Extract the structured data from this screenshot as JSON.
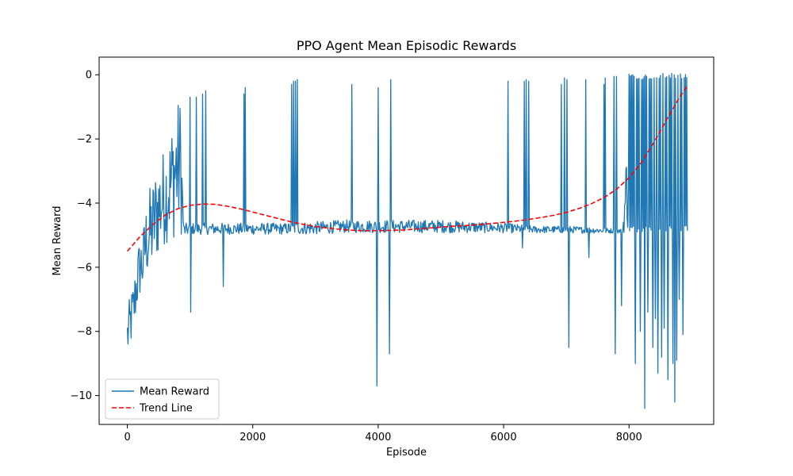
{
  "chart_data": {
    "type": "line",
    "title": "PPO Agent Mean Episodic Rewards",
    "xlabel": "Episode",
    "ylabel": "Mean Reward",
    "xlim": [
      -450,
      9350
    ],
    "ylim": [
      -10.9,
      0.55
    ],
    "xticks": [
      0,
      2000,
      4000,
      6000,
      8000
    ],
    "xtick_labels": [
      "0",
      "2000",
      "4000",
      "6000",
      "8000"
    ],
    "yticks": [
      0,
      -2,
      -4,
      -6,
      -8,
      -10
    ],
    "ytick_labels": [
      "0",
      "−2",
      "−4",
      "−6",
      "−8",
      "−10"
    ],
    "grid": false,
    "legend_position": "lower-left",
    "series": [
      {
        "name": "Mean Reward",
        "style": "solid",
        "color": "#1f77b4",
        "envelope": [
          {
            "x": 0,
            "min": -9.0,
            "max": -7.3
          },
          {
            "x": 50,
            "min": -8.6,
            "max": -6.8
          },
          {
            "x": 100,
            "min": -8.2,
            "max": -6.4
          },
          {
            "x": 150,
            "min": -7.5,
            "max": -5.5
          },
          {
            "x": 200,
            "min": -7.0,
            "max": -5.0
          },
          {
            "x": 250,
            "min": -6.9,
            "max": -4.8
          },
          {
            "x": 300,
            "min": -6.3,
            "max": -4.0
          },
          {
            "x": 350,
            "min": -6.5,
            "max": -3.5
          },
          {
            "x": 400,
            "min": -6.2,
            "max": -3.3
          },
          {
            "x": 450,
            "min": -5.9,
            "max": -2.9
          },
          {
            "x": 500,
            "min": -5.7,
            "max": -2.6
          },
          {
            "x": 550,
            "min": -5.5,
            "max": -2.4
          },
          {
            "x": 600,
            "min": -5.3,
            "max": -2.2
          },
          {
            "x": 650,
            "min": -5.2,
            "max": -2.0
          },
          {
            "x": 700,
            "min": -5.3,
            "max": -1.5
          },
          {
            "x": 750,
            "min": -5.1,
            "max": -1.0
          },
          {
            "x": 800,
            "min": -5.0,
            "max": -0.8
          },
          {
            "x": 850,
            "min": -5.0,
            "max": -0.6
          },
          {
            "x": 900,
            "min": -5.1,
            "max": -4.6
          },
          {
            "x": 1000,
            "min": -5.0,
            "max": -4.6
          },
          {
            "x": 1200,
            "min": -5.0,
            "max": -4.6
          },
          {
            "x": 1500,
            "min": -5.0,
            "max": -4.6
          },
          {
            "x": 2000,
            "min": -5.0,
            "max": -4.6
          },
          {
            "x": 2500,
            "min": -5.0,
            "max": -4.6
          },
          {
            "x": 3000,
            "min": -5.0,
            "max": -4.55
          },
          {
            "x": 3500,
            "min": -4.95,
            "max": -4.5
          },
          {
            "x": 4000,
            "min": -4.95,
            "max": -4.5
          },
          {
            "x": 4500,
            "min": -4.95,
            "max": -4.5
          },
          {
            "x": 5000,
            "min": -4.95,
            "max": -4.5
          },
          {
            "x": 5500,
            "min": -4.95,
            "max": -4.55
          },
          {
            "x": 6000,
            "min": -4.95,
            "max": -4.6
          },
          {
            "x": 6500,
            "min": -4.95,
            "max": -4.7
          },
          {
            "x": 7000,
            "min": -4.95,
            "max": -4.7
          },
          {
            "x": 7500,
            "min": -4.95,
            "max": -4.75
          },
          {
            "x": 7900,
            "min": -4.95,
            "max": -4.8
          },
          {
            "x": 8000,
            "min": -5.2,
            "max": -0.05
          },
          {
            "x": 8500,
            "min": -5.5,
            "max": -0.05
          },
          {
            "x": 8930,
            "min": -4.9,
            "max": -0.05
          }
        ],
        "dense_band": {
          "x_start": 8000,
          "x_end": 8930,
          "min": -4.9,
          "max": -0.05
        },
        "spikes": [
          {
            "x": 1000,
            "y": -0.7
          },
          {
            "x": 1010,
            "y": -7.4
          },
          {
            "x": 1100,
            "y": -0.7
          },
          {
            "x": 1200,
            "y": -0.6
          },
          {
            "x": 1250,
            "y": -0.5
          },
          {
            "x": 1530,
            "y": -6.6
          },
          {
            "x": 1860,
            "y": -0.6
          },
          {
            "x": 1880,
            "y": -0.4
          },
          {
            "x": 2620,
            "y": -0.3
          },
          {
            "x": 2650,
            "y": -0.2
          },
          {
            "x": 2680,
            "y": -0.2
          },
          {
            "x": 2710,
            "y": -0.15
          },
          {
            "x": 3580,
            "y": -0.3
          },
          {
            "x": 3980,
            "y": -9.7
          },
          {
            "x": 4000,
            "y": -0.4
          },
          {
            "x": 4180,
            "y": -8.7
          },
          {
            "x": 4200,
            "y": -0.15
          },
          {
            "x": 6070,
            "y": -0.2
          },
          {
            "x": 6300,
            "y": -5.4
          },
          {
            "x": 6330,
            "y": -0.2
          },
          {
            "x": 6360,
            "y": -0.15
          },
          {
            "x": 6400,
            "y": -0.2
          },
          {
            "x": 6920,
            "y": -0.3
          },
          {
            "x": 6970,
            "y": -0.1
          },
          {
            "x": 7010,
            "y": -0.15
          },
          {
            "x": 7040,
            "y": -8.5
          },
          {
            "x": 7310,
            "y": -0.15
          },
          {
            "x": 7360,
            "y": -5.7
          },
          {
            "x": 7600,
            "y": -0.3
          },
          {
            "x": 7620,
            "y": -0.1
          },
          {
            "x": 7760,
            "y": -0.05
          },
          {
            "x": 7780,
            "y": -8.7
          },
          {
            "x": 7800,
            "y": -0.05
          },
          {
            "x": 7880,
            "y": -7.2
          },
          {
            "x": 8100,
            "y": -9.0
          },
          {
            "x": 8180,
            "y": -8.0
          },
          {
            "x": 8250,
            "y": -10.4
          },
          {
            "x": 8300,
            "y": -7.4
          },
          {
            "x": 8380,
            "y": -8.5
          },
          {
            "x": 8420,
            "y": -7.6
          },
          {
            "x": 8460,
            "y": -9.3
          },
          {
            "x": 8520,
            "y": -8.8
          },
          {
            "x": 8560,
            "y": -7.9
          },
          {
            "x": 8620,
            "y": -9.5
          },
          {
            "x": 8700,
            "y": -9.0
          },
          {
            "x": 8730,
            "y": -10.2
          },
          {
            "x": 8760,
            "y": -8.9
          },
          {
            "x": 8800,
            "y": -7.0
          },
          {
            "x": 8860,
            "y": -8.1
          }
        ]
      },
      {
        "name": "Trend Line",
        "style": "dashed",
        "color": "#ff0000",
        "x": [
          0,
          200,
          400,
          600,
          800,
          1000,
          1200,
          1400,
          1600,
          1800,
          2000,
          2200,
          2400,
          2600,
          2800,
          3000,
          3200,
          3400,
          3600,
          3800,
          4000,
          4200,
          4400,
          4600,
          4800,
          5000,
          5200,
          5400,
          5600,
          5800,
          6000,
          6200,
          6400,
          6600,
          6800,
          7000,
          7200,
          7400,
          7600,
          7800,
          8000,
          8200,
          8400,
          8600,
          8800,
          8930
        ],
        "y": [
          -5.5,
          -5.05,
          -4.68,
          -4.38,
          -4.18,
          -4.07,
          -4.03,
          -4.04,
          -4.1,
          -4.18,
          -4.28,
          -4.38,
          -4.48,
          -4.58,
          -4.66,
          -4.73,
          -4.78,
          -4.82,
          -4.85,
          -4.86,
          -4.86,
          -4.85,
          -4.84,
          -4.81,
          -4.78,
          -4.75,
          -4.72,
          -4.7,
          -4.67,
          -4.64,
          -4.6,
          -4.56,
          -4.51,
          -4.45,
          -4.38,
          -4.29,
          -4.17,
          -4.02,
          -3.83,
          -3.57,
          -3.21,
          -2.73,
          -2.1,
          -1.4,
          -0.72,
          -0.35
        ]
      }
    ]
  }
}
